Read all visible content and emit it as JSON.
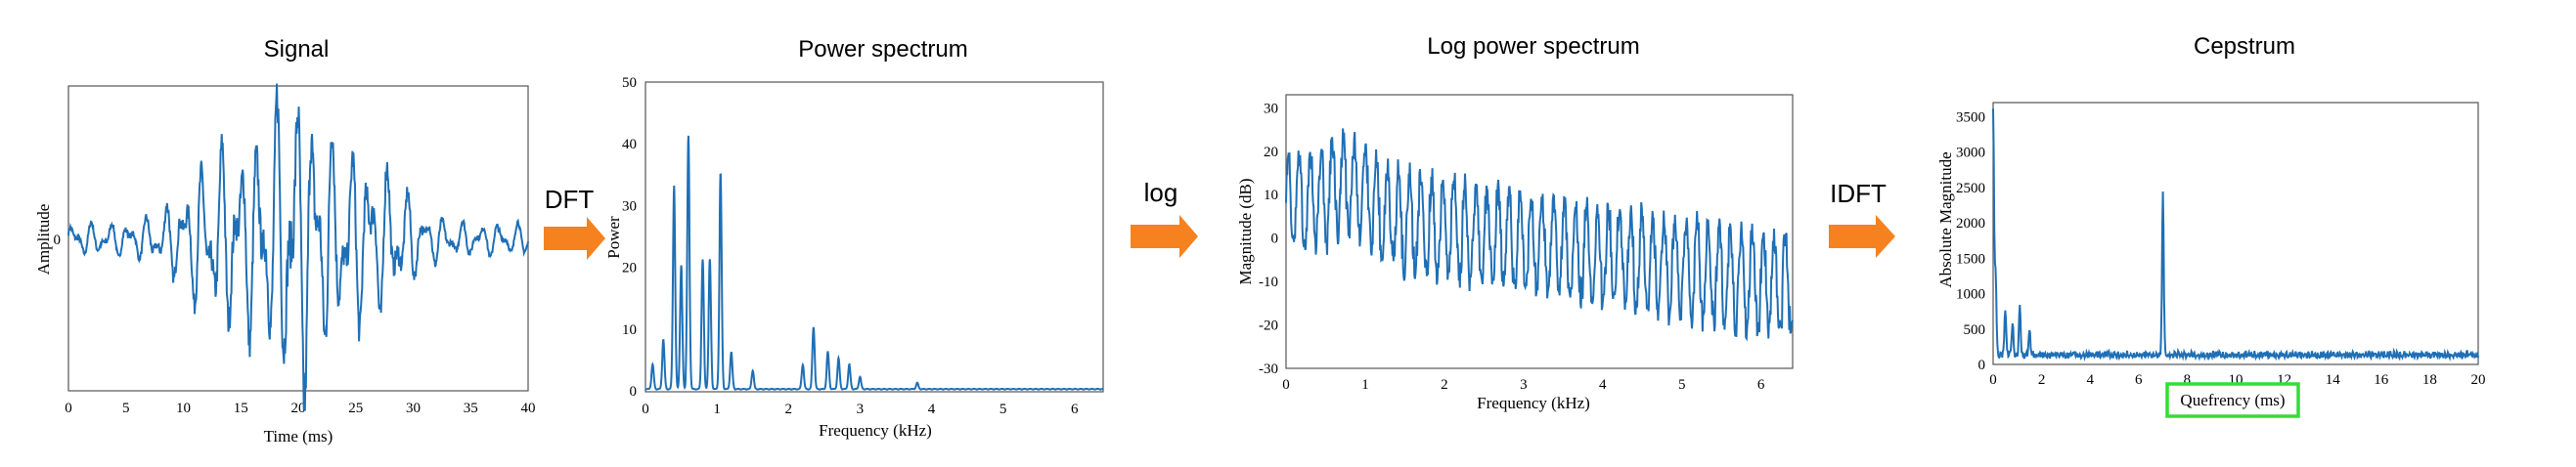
{
  "accent": "#1f6fb5",
  "arrow_color": "#f5821f",
  "highlight_color": "#33dd33",
  "steps": [
    {
      "label": "DFT",
      "icon": "arrow-right-icon"
    },
    {
      "label": "log",
      "icon": "arrow-right-icon"
    },
    {
      "label": "IDFT",
      "icon": "arrow-right-icon"
    }
  ],
  "chart_data": [
    {
      "type": "line",
      "title": "Signal",
      "xlabel": "Time (ms)",
      "ylabel": "Amplitude",
      "xlim": [
        0,
        40
      ],
      "xticks": [
        "0",
        "5",
        "10",
        "15",
        "20",
        "25",
        "30",
        "35",
        "40"
      ],
      "yticks": [
        "0"
      ],
      "grid": false
    },
    {
      "type": "line",
      "title": "Power spectrum",
      "xlabel": "Frequency (kHz)",
      "ylabel": "Power",
      "xlim": [
        0,
        6.4
      ],
      "ylim": [
        0,
        50
      ],
      "xticks": [
        "0",
        "1",
        "2",
        "3",
        "4",
        "5",
        "6"
      ],
      "yticks": [
        "0",
        "10",
        "20",
        "30",
        "40",
        "50"
      ],
      "peaks": [
        [
          0.1,
          4
        ],
        [
          0.25,
          8
        ],
        [
          0.4,
          33
        ],
        [
          0.5,
          20
        ],
        [
          0.6,
          41
        ],
        [
          0.8,
          21
        ],
        [
          0.9,
          21
        ],
        [
          1.05,
          35
        ],
        [
          1.2,
          6
        ],
        [
          1.5,
          3
        ],
        [
          2.2,
          4
        ],
        [
          2.35,
          10
        ],
        [
          2.55,
          6
        ],
        [
          2.7,
          5
        ],
        [
          2.85,
          4
        ],
        [
          3.0,
          2
        ],
        [
          3.8,
          1
        ]
      ],
      "grid": false
    },
    {
      "type": "line",
      "title": "Log power spectrum",
      "xlabel": "Frequency (kHz)",
      "ylabel": "Magnitude (dB)",
      "xlim": [
        0,
        6.4
      ],
      "ylim": [
        -30,
        33
      ],
      "xticks": [
        "0",
        "1",
        "2",
        "3",
        "4",
        "5",
        "6"
      ],
      "yticks": [
        "-30",
        "-20",
        "-10",
        "0",
        "10",
        "20",
        "30"
      ],
      "grid": false
    },
    {
      "type": "line",
      "title": "Cepstrum",
      "xlabel": "Quefrency (ms)",
      "ylabel": "Absolute Magnitude",
      "xlim": [
        0,
        20
      ],
      "ylim": [
        0,
        3700
      ],
      "xticks": [
        "0",
        "2",
        "4",
        "6",
        "8",
        "10",
        "12",
        "14",
        "16",
        "18",
        "20"
      ],
      "yticks": [
        "0",
        "500",
        "1000",
        "1500",
        "2000",
        "2500",
        "3000",
        "3500"
      ],
      "peaks": [
        [
          0,
          3500
        ],
        [
          0.1,
          1200
        ],
        [
          0.5,
          650
        ],
        [
          0.8,
          450
        ],
        [
          1.1,
          700
        ],
        [
          1.5,
          350
        ],
        [
          7.0,
          2300
        ]
      ],
      "highlight": "Quefrency (ms)",
      "grid": false
    }
  ]
}
